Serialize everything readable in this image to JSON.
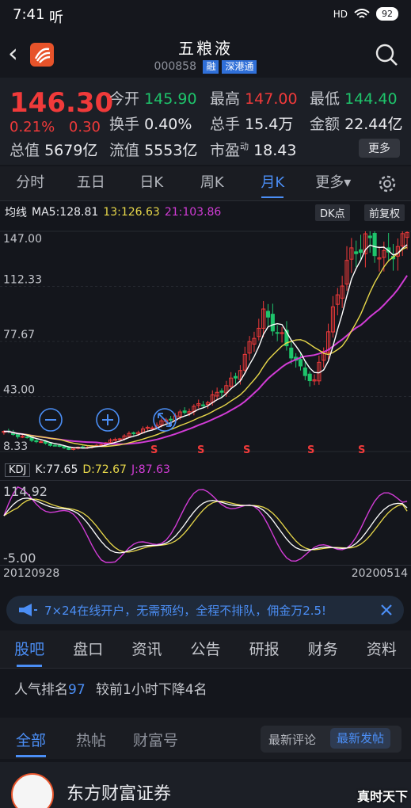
{
  "status_bar": {
    "time": "7:41",
    "carrier_icon": "听",
    "signal": "HD",
    "battery": "92"
  },
  "header": {
    "title": "五粮液",
    "code": "000858",
    "tags": [
      "融",
      "深港通"
    ]
  },
  "quote": {
    "price": "146.30",
    "change_pct": "0.21%",
    "change_abs": "0.30",
    "open_label": "今开",
    "open": "145.90",
    "high_label": "最高",
    "high": "147.00",
    "low_label": "最低",
    "low": "144.40",
    "turnover_label": "换手",
    "turnover": "0.40%",
    "volume_label": "总手",
    "volume": "15.4万",
    "amount_label": "金额",
    "amount": "22.44亿",
    "mktcap_label": "总值",
    "mktcap": "5679亿",
    "float_label": "流值",
    "float": "5553亿",
    "pe_label": "市盈",
    "pe_sup": "动",
    "pe": "18.43",
    "more_label": "更多"
  },
  "period_tabs": [
    "分时",
    "五日",
    "日K",
    "周K",
    "月K",
    "更多▾"
  ],
  "active_period": 4,
  "ma": {
    "label": "均线",
    "ma5": "MA5:128.81",
    "ma13": "13:126.63",
    "ma21": "21:103.86",
    "dk_label": "DK点",
    "adjust_label": "前复权"
  },
  "price_axis": [
    "147.00",
    "112.33",
    "77.67",
    "43.00",
    "8.33"
  ],
  "signal_label": "S",
  "kdj": {
    "label": "KDJ",
    "k": "K:77.65",
    "d": "D:72.67",
    "j": "J:87.63",
    "axis_top": "114.92",
    "axis_bottom": "-5.00"
  },
  "dates": {
    "start": "20120928",
    "end": "20200514"
  },
  "colors": {
    "up": "#f03a3a",
    "down": "#1ec46b",
    "ma5": "#ffffff",
    "ma13": "#e8d84a",
    "ma21": "#d23cd6",
    "accent": "#4b8ef5"
  },
  "banner": {
    "text": "7×24在线开户，无需预约，全程不排队，佣金万2.5!"
  },
  "news_tabs": [
    "股吧",
    "盘口",
    "资讯",
    "公告",
    "研报",
    "财务",
    "资料"
  ],
  "active_news": 0,
  "rank": {
    "prefix": "人气排名",
    "value": "97",
    "suffix": "较前1小时下降4名"
  },
  "feed_tabs": [
    "全部",
    "热帖",
    "财富号"
  ],
  "sort": {
    "latest_comment": "最新评论",
    "latest_post": "最新发帖"
  },
  "post": {
    "author": "东方财富证券"
  },
  "watermark": "真时天下"
}
